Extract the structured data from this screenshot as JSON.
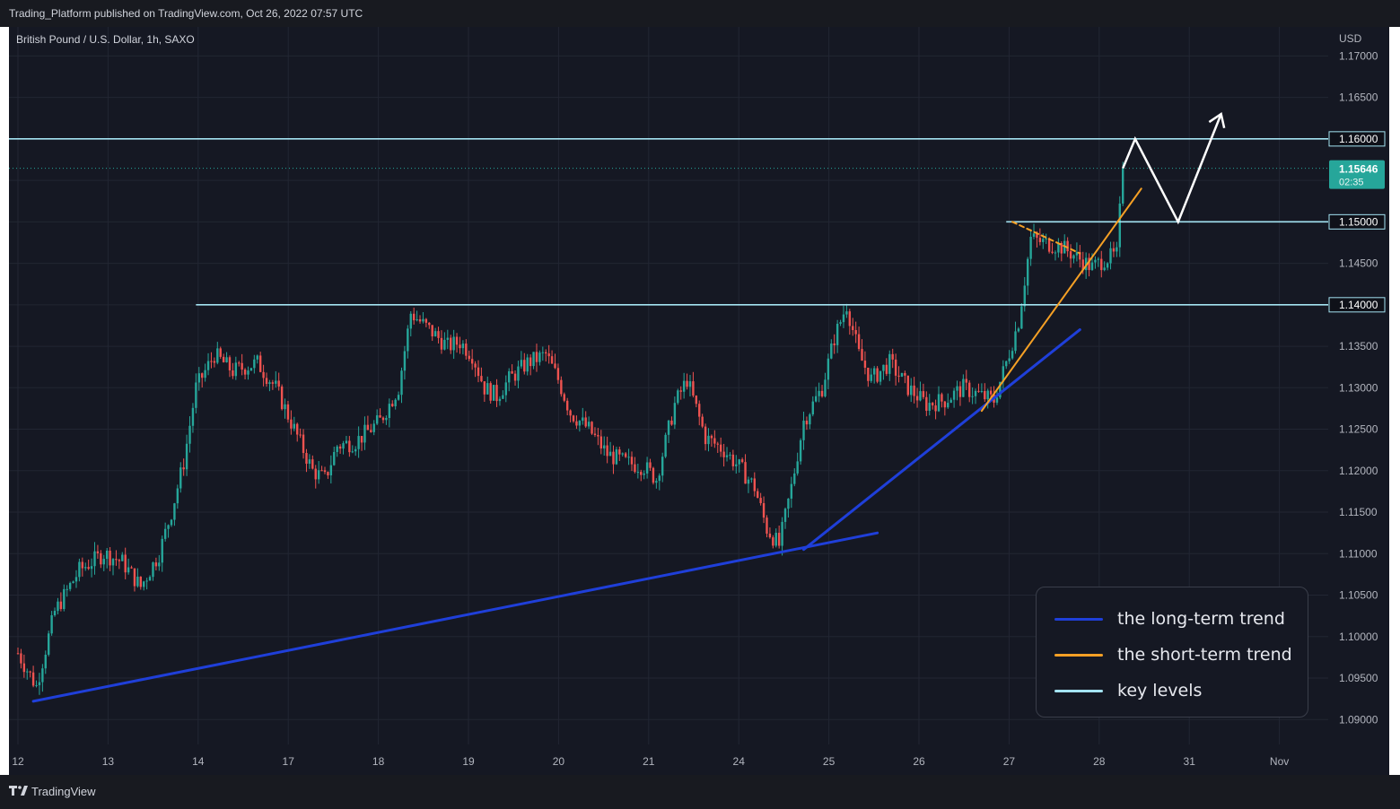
{
  "header": {
    "publisher": "Trading_Platform published on TradingView.com, Oct 26, 2022 07:57 UTC"
  },
  "chart_info": {
    "symbol": "British Pound / U.S. Dollar, 1h, SAXO",
    "currency": "USD"
  },
  "footer": {
    "brand": "TradingView"
  },
  "price_tag": {
    "price": "1.15646",
    "countdown": "02:35"
  },
  "colors": {
    "background": "#151823",
    "grid": "#222633",
    "up": "#26a69a",
    "down": "#ef5350",
    "long_trend": "#1f3fd9",
    "short_trend": "#f5a025",
    "key_level": "#a4e3f2",
    "projection": "#ffffff",
    "price_tag": "#26a69a",
    "axis_text": "#b2b5be"
  },
  "legend": [
    {
      "label": "the long-term trend",
      "color": "#1f3fd9"
    },
    {
      "label": "the short-term trend",
      "color": "#f5a025"
    },
    {
      "label": "key levels",
      "color": "#a4e3f2"
    }
  ],
  "chart_data": {
    "type": "candlestick",
    "title": "British Pound / U.S. Dollar, 1h, SAXO",
    "y_axis_label": "USD",
    "ylim": [
      1.087,
      1.1735
    ],
    "y_ticks": [
      "1.17000",
      "1.16500",
      "1.16000",
      "1.15500",
      "1.15000",
      "1.14500",
      "1.14000",
      "1.13500",
      "1.13000",
      "1.12500",
      "1.12000",
      "1.11500",
      "1.11000",
      "1.10500",
      "1.10000",
      "1.09500",
      "1.09000"
    ],
    "x_ticks": [
      "12",
      "13",
      "14",
      "17",
      "18",
      "19",
      "20",
      "21",
      "24",
      "25",
      "26",
      "27",
      "28",
      "31",
      "Nov"
    ],
    "current_price": 1.15646,
    "grid": true,
    "session_anchors": [
      [
        0,
        1.098
      ],
      [
        6,
        1.094
      ],
      [
        12,
        1.103
      ],
      [
        20,
        1.108
      ],
      [
        28,
        1.11
      ],
      [
        34,
        1.109
      ],
      [
        40,
        1.106
      ],
      [
        46,
        1.11
      ],
      [
        50,
        1.115
      ],
      [
        54,
        1.121
      ],
      [
        58,
        1.13
      ],
      [
        64,
        1.134
      ],
      [
        70,
        1.132
      ],
      [
        78,
        1.133
      ],
      [
        84,
        1.13
      ],
      [
        90,
        1.125
      ],
      [
        96,
        1.12
      ],
      [
        100,
        1.119
      ],
      [
        104,
        1.123
      ],
      [
        110,
        1.1235
      ],
      [
        118,
        1.126
      ],
      [
        124,
        1.13
      ],
      [
        128,
        1.139
      ],
      [
        134,
        1.137
      ],
      [
        140,
        1.135
      ],
      [
        144,
        1.1355
      ],
      [
        148,
        1.134
      ],
      [
        152,
        1.13
      ],
      [
        156,
        1.129
      ],
      [
        160,
        1.131
      ],
      [
        166,
        1.133
      ],
      [
        172,
        1.134
      ],
      [
        176,
        1.131
      ],
      [
        180,
        1.127
      ],
      [
        186,
        1.125
      ],
      [
        192,
        1.122
      ],
      [
        198,
        1.121
      ],
      [
        204,
        1.1205
      ],
      [
        208,
        1.119
      ],
      [
        214,
        1.128
      ],
      [
        218,
        1.131
      ],
      [
        224,
        1.124
      ],
      [
        230,
        1.1225
      ],
      [
        236,
        1.12
      ],
      [
        240,
        1.118
      ],
      [
        244,
        1.113
      ],
      [
        248,
        1.111
      ],
      [
        252,
        1.118
      ],
      [
        256,
        1.126
      ],
      [
        262,
        1.13
      ],
      [
        266,
        1.136
      ],
      [
        270,
        1.14
      ],
      [
        274,
        1.134
      ],
      [
        278,
        1.131
      ],
      [
        284,
        1.133
      ],
      [
        290,
        1.13
      ],
      [
        296,
        1.128
      ],
      [
        302,
        1.1285
      ],
      [
        308,
        1.13
      ],
      [
        314,
        1.129
      ],
      [
        318,
        1.1285
      ],
      [
        322,
        1.133
      ],
      [
        326,
        1.138
      ],
      [
        330,
        1.148
      ],
      [
        334,
        1.1475
      ],
      [
        340,
        1.147
      ],
      [
        346,
        1.1455
      ],
      [
        350,
        1.1445
      ],
      [
        354,
        1.1455
      ],
      [
        358,
        1.146
      ],
      [
        360,
        1.1565
      ]
    ],
    "key_levels": [
      {
        "price": 1.16,
        "label": "1.16000",
        "from_hour": 0
      },
      {
        "price": 1.15,
        "label": "1.15000",
        "from_hour": 322
      },
      {
        "price": 1.14,
        "label": "1.14000",
        "from_hour": 58
      }
    ],
    "trendlines": [
      {
        "name": "the long-term trend",
        "points": [
          [
            5,
            1.0922
          ],
          [
            280,
            1.1125
          ]
        ]
      },
      {
        "name": "the long-term trend",
        "points": [
          [
            256,
            1.1105
          ],
          [
            346,
            1.137
          ]
        ]
      },
      {
        "name": "the short-term trend",
        "points": [
          [
            314,
            1.1272
          ],
          [
            366,
            1.154
          ]
        ]
      },
      {
        "name": "the short-term trend",
        "dashed": true,
        "points": [
          [
            324,
            1.15
          ],
          [
            346,
            1.1462
          ]
        ]
      }
    ],
    "projection": [
      [
        364,
        1.16
      ],
      [
        378,
        1.15
      ],
      [
        392,
        1.163
      ]
    ]
  }
}
